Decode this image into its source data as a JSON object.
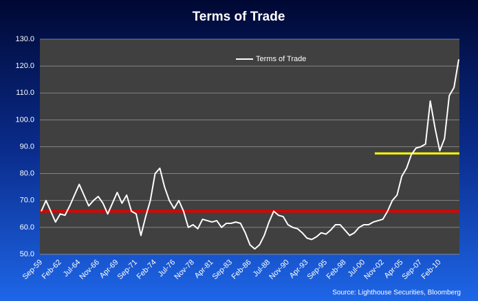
{
  "chart_data": {
    "type": "line",
    "title": "Terms of Trade",
    "source": "Source: Lighthouse Securities, Bloomberg",
    "categories": [
      "Sep-59",
      null,
      null,
      null,
      "Feb-62",
      null,
      null,
      null,
      "Jul-64",
      null,
      null,
      null,
      "Nov-66",
      null,
      null,
      null,
      "Apr-69",
      null,
      null,
      null,
      "Sep-71",
      null,
      null,
      null,
      "Feb-74",
      null,
      null,
      null,
      "Jul-76",
      null,
      null,
      null,
      "Nov-78",
      null,
      null,
      null,
      "Apr-81",
      null,
      null,
      null,
      "Sep-83",
      null,
      null,
      null,
      "Feb-86",
      null,
      null,
      null,
      "Jul-88",
      null,
      null,
      null,
      "Nov-90",
      null,
      null,
      null,
      "Apr-93",
      null,
      null,
      null,
      "Sep-95",
      null,
      null,
      null,
      "Feb-98",
      null,
      null,
      null,
      "Jul-00",
      null,
      null,
      null,
      "Nov-02",
      null,
      null,
      null,
      "Apr-05",
      null,
      null,
      null,
      "Sep-07",
      null,
      null,
      null,
      "Feb-10",
      null,
      null,
      null,
      null
    ],
    "series": [
      {
        "name": "Terms of Trade",
        "color": "#ffffff",
        "values": [
          66,
          70,
          66,
          62,
          65,
          64.5,
          68,
          72,
          76,
          72,
          68,
          70,
          71.5,
          69,
          65,
          69,
          73,
          69,
          72,
          66,
          65,
          57,
          64,
          70,
          80,
          82,
          75,
          70,
          67,
          70,
          66,
          60,
          61,
          59.5,
          63,
          62.5,
          62,
          62.5,
          60,
          61.5,
          61.5,
          62,
          61.5,
          58,
          53.5,
          52,
          53.5,
          57,
          62,
          66,
          64.5,
          64,
          61,
          60,
          59.5,
          58,
          56,
          55.5,
          56.5,
          58,
          57.5,
          59,
          61,
          61,
          59,
          57,
          58,
          60,
          61,
          61,
          62,
          62.5,
          63,
          66,
          70,
          72,
          79,
          82,
          87,
          89.5,
          90,
          91,
          107,
          97,
          88.5,
          93,
          109,
          112,
          122.5
        ]
      }
    ],
    "reference_lines": [
      {
        "value": 66,
        "color": "#e00000",
        "x_start": 0
      },
      {
        "value": 87.5,
        "color": "#ffff00",
        "x_start": 70.3
      }
    ],
    "ylim": [
      50,
      130
    ],
    "yticks": [
      {
        "value": 50,
        "label": "50.0"
      },
      {
        "value": 60,
        "label": "60.0"
      },
      {
        "value": 70,
        "label": "70.0"
      },
      {
        "value": 80,
        "label": "80.0"
      },
      {
        "value": 90,
        "label": "90.0"
      },
      {
        "value": 100,
        "label": "100.0"
      },
      {
        "value": 110,
        "label": "110.0"
      },
      {
        "value": 120,
        "label": "120.0"
      },
      {
        "value": 130,
        "label": "130.0"
      }
    ],
    "grid": true,
    "legend": "top"
  }
}
